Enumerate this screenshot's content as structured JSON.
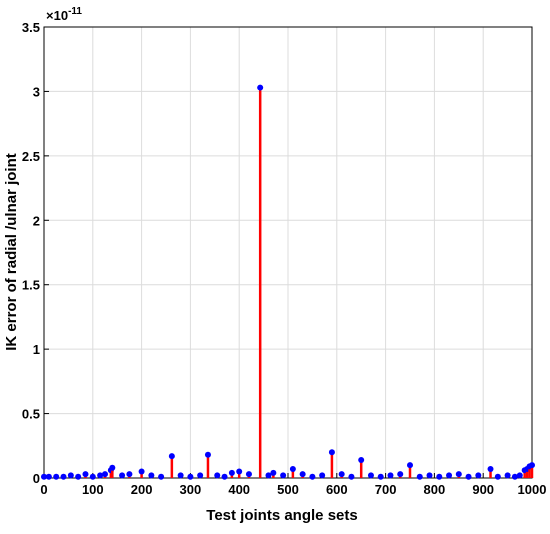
{
  "chart_data": {
    "type": "stem",
    "xlabel": "Test joints angle sets",
    "ylabel": "IK error of radial /ulnar joint",
    "y_scale_base": "×10",
    "y_scale_exponent": "-11",
    "stem_color": "#ff0000",
    "marker_color": "#0000ff",
    "grid": true,
    "xlim": [
      0,
      1000
    ],
    "xticks": [
      0,
      100,
      200,
      300,
      400,
      500,
      600,
      700,
      800,
      900,
      1000
    ],
    "ylim": [
      0,
      3.5
    ],
    "yticks": [
      0,
      0.5,
      1,
      1.5,
      2,
      2.5,
      3,
      3.5
    ],
    "x": [
      0,
      10,
      25,
      40,
      55,
      70,
      85,
      100,
      115,
      125,
      137,
      140,
      160,
      175,
      200,
      220,
      240,
      262,
      280,
      300,
      320,
      336,
      355,
      370,
      385,
      400,
      420,
      443,
      460,
      470,
      490,
      510,
      530,
      550,
      570,
      590,
      610,
      630,
      650,
      670,
      690,
      710,
      730,
      750,
      770,
      790,
      810,
      830,
      850,
      870,
      890,
      915,
      930,
      950,
      965,
      975,
      985,
      990,
      995,
      1000
    ],
    "values": [
      0.01,
      0.01,
      0.01,
      0.01,
      0.02,
      0.01,
      0.03,
      0.01,
      0.02,
      0.03,
      0.06,
      0.08,
      0.02,
      0.03,
      0.05,
      0.02,
      0.01,
      0.17,
      0.02,
      0.01,
      0.02,
      0.18,
      0.02,
      0.01,
      0.04,
      0.05,
      0.03,
      3.03,
      0.02,
      0.04,
      0.02,
      0.07,
      0.03,
      0.01,
      0.02,
      0.2,
      0.03,
      0.01,
      0.14,
      0.02,
      0.01,
      0.02,
      0.03,
      0.1,
      0.01,
      0.02,
      0.01,
      0.02,
      0.03,
      0.01,
      0.02,
      0.07,
      0.01,
      0.02,
      0.01,
      0.02,
      0.06,
      0.07,
      0.09,
      0.1
    ]
  }
}
